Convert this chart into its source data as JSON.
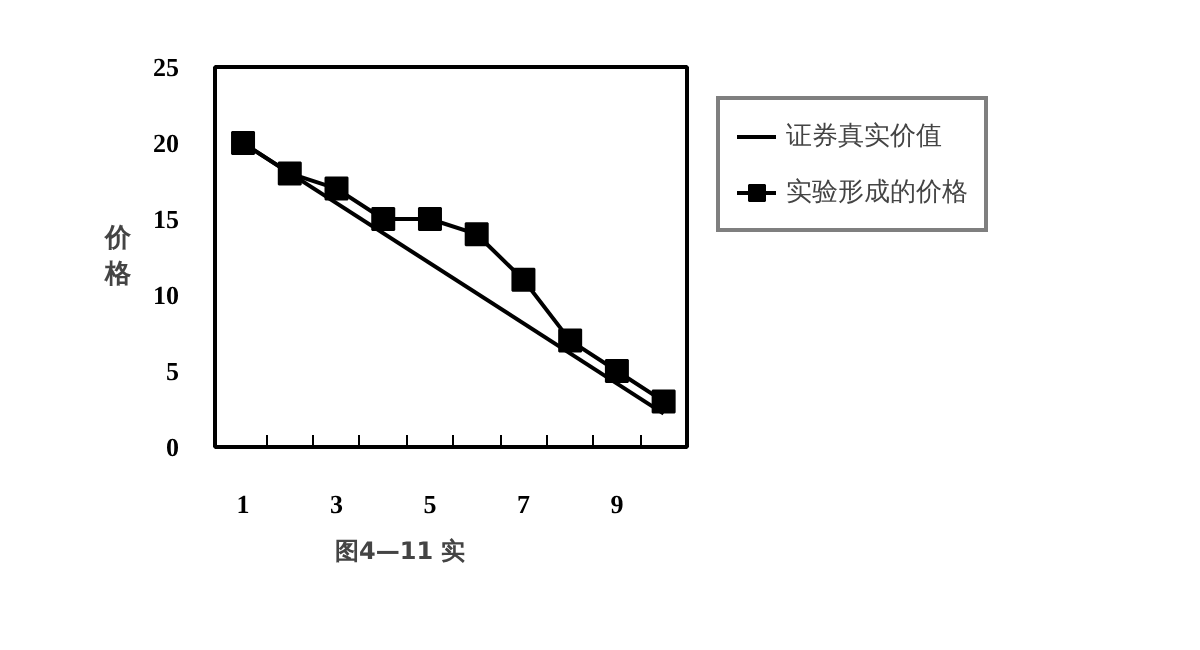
{
  "chart_data": {
    "type": "line",
    "ylabel": "价格",
    "x": [
      1,
      2,
      3,
      4,
      5,
      6,
      7,
      8,
      9,
      10
    ],
    "series": [
      {
        "name": "证券真实价值",
        "color": "#000000",
        "x": [
          1,
          10
        ],
        "values": [
          20,
          2.2
        ]
      },
      {
        "name": "实验形成的价格",
        "color": "#000000",
        "values": [
          20,
          18,
          17,
          15,
          15,
          14,
          11,
          7,
          5,
          3
        ],
        "marker": "square"
      }
    ],
    "xlim": [
      0.4,
      10.5
    ],
    "ylim": [
      0,
      25
    ],
    "xticks": [
      1,
      {
        "value": 1.5,
        "label": null
      },
      {
        "value": 2.5,
        "label": null
      },
      3,
      {
        "value": 3.5,
        "label": null
      },
      {
        "value": 4.5,
        "label": null
      },
      5,
      {
        "value": 5.5,
        "label": null
      },
      {
        "value": 6.5,
        "label": null
      },
      7,
      {
        "value": 7.5,
        "label": null
      },
      {
        "value": 8.5,
        "label": null
      },
      9,
      {
        "value": 9.5,
        "label": null
      }
    ],
    "yticks": [
      0,
      5,
      10,
      15,
      20,
      25
    ],
    "grid": false,
    "legend": "right",
    "line_style": "solid",
    "annotations": [
      "图4—11 实"
    ]
  }
}
